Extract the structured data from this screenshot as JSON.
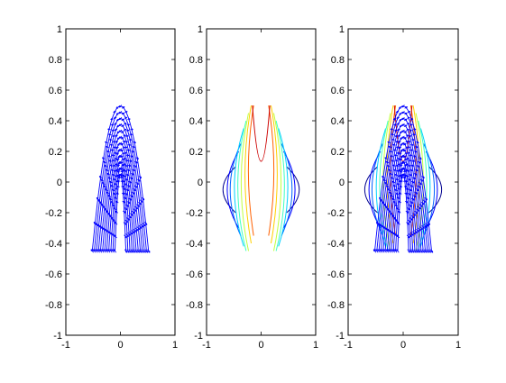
{
  "chart_data": [
    {
      "type": "quiver",
      "panel": "left",
      "xlim": [
        -1,
        1
      ],
      "ylim": [
        -1,
        1
      ],
      "x_ticks": [
        "-1",
        "0",
        "1"
      ],
      "y_ticks": [
        "-1",
        "-0.8",
        "-0.6",
        "-0.4",
        "-0.2",
        "0",
        "0.2",
        "0.4",
        "0.6",
        "0.8",
        "1"
      ],
      "grid": false,
      "arrow_color": "#0000ff",
      "field_region": {
        "apex": [
          0,
          0.5
        ],
        "inner_apex": [
          0,
          0.05
        ],
        "outer_ends": [
          [
            -0.52,
            -0.45
          ],
          [
            0.52,
            -0.45
          ]
        ]
      }
    },
    {
      "type": "contour",
      "panel": "middle",
      "xlim": [
        -1,
        1
      ],
      "ylim": [
        -1,
        1
      ],
      "x_ticks": [
        "-1",
        "0",
        "1"
      ],
      "y_ticks": [
        "-1",
        "-0.8",
        "-0.6",
        "-0.4",
        "-0.2",
        "0",
        "0.2",
        "0.4",
        "0.6",
        "0.8",
        "1"
      ],
      "grid": false,
      "levels": [
        {
          "color": "#00008f",
          "x": [
            -0.85,
            0.85
          ],
          "y": [
            -0.2,
            0.1
          ]
        },
        {
          "color": "#0000ff",
          "x": [
            -0.75,
            0.75
          ],
          "y": [
            -0.3,
            0.2
          ]
        },
        {
          "color": "#0060ff",
          "x": [
            -0.68,
            0.68
          ],
          "y": [
            -0.35,
            0.25
          ]
        },
        {
          "color": "#00d0ff",
          "x": [
            -0.58,
            0.58
          ],
          "y": [
            -0.42,
            0.35
          ]
        },
        {
          "color": "#40ffc0",
          "x": [
            -0.5,
            0.5
          ],
          "y": [
            -0.45,
            0.4
          ]
        },
        {
          "color": "#c0ff40",
          "x": [
            -0.42,
            0.42
          ],
          "y": [
            -0.45,
            0.45
          ]
        },
        {
          "color": "#ffd000",
          "x": [
            -0.33,
            0.33
          ],
          "y": [
            -0.4,
            0.5
          ]
        },
        {
          "color": "#ff6000",
          "x": [
            -0.25,
            0.25
          ],
          "y": [
            -0.35,
            0.5
          ]
        },
        {
          "color": "#cc0000",
          "x": [
            -0.16,
            0.16
          ],
          "y": [
            0.12,
            0.5
          ]
        }
      ]
    },
    {
      "type": "quiver+contour",
      "panel": "right",
      "xlim": [
        -1,
        1
      ],
      "ylim": [
        -1,
        1
      ],
      "x_ticks": [
        "-1",
        "0",
        "1"
      ],
      "y_ticks": [
        "-1",
        "-0.8",
        "-0.6",
        "-0.4",
        "-0.2",
        "0",
        "0.2",
        "0.4",
        "0.6",
        "0.8",
        "1"
      ],
      "grid": false,
      "arrow_color": "#0000ff"
    }
  ]
}
